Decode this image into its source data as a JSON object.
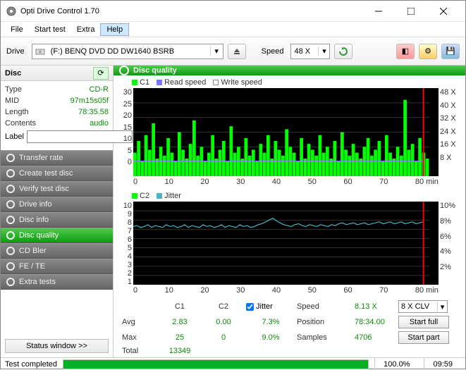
{
  "window": {
    "title": "Opti Drive Control 1.70"
  },
  "menu": {
    "items": [
      "File",
      "Start test",
      "Extra",
      "Help"
    ],
    "active_index": 3
  },
  "toolbar": {
    "drive_label": "Drive",
    "drive_value": "(F:)   BENQ DVD DD DW1640 BSRB",
    "speed_label": "Speed",
    "speed_value": "48 X"
  },
  "disc": {
    "header": "Disc",
    "type_label": "Type",
    "type_value": "CD-R",
    "mid_label": "MID",
    "mid_value": "97m15s05f",
    "length_label": "Length",
    "length_value": "78:35.58",
    "contents_label": "Contents",
    "contents_value": "audio",
    "label_label": "Label",
    "label_value": ""
  },
  "nav": {
    "items": [
      "Transfer rate",
      "Create test disc",
      "Verify test disc",
      "Drive info",
      "Disc info",
      "Disc quality",
      "CD Bler",
      "FE / TE",
      "Extra tests"
    ],
    "active_index": 5,
    "status_window": "Status window >>"
  },
  "quality": {
    "header": "Disc quality"
  },
  "chart1": {
    "legend": [
      {
        "label": "C1",
        "color": "#00ff00"
      },
      {
        "label": "Read speed",
        "color": "#7878ff"
      },
      {
        "label": "Write speed",
        "color": "#ffffff"
      }
    ],
    "y_ticks": [
      "30",
      "25",
      "20",
      "15",
      "10",
      "5",
      "0"
    ],
    "y2_ticks": [
      "48 X",
      "40 X",
      "32 X",
      "24 X",
      "16 X",
      "8 X",
      ""
    ],
    "x_ticks": [
      "0",
      "10",
      "20",
      "30",
      "40",
      "50",
      "60",
      "70",
      "80 min"
    ],
    "height": 125,
    "bg": "#000000",
    "c1_color": "#00ff00",
    "read_color": "#977dff",
    "grid_color": "#333333",
    "marker_color": "#ff0000",
    "xlim": [
      0,
      80
    ],
    "ylim": [
      0,
      30
    ],
    "c1_series": [
      8,
      12,
      5,
      14,
      9,
      18,
      6,
      10,
      7,
      13,
      8,
      5,
      15,
      9,
      6,
      11,
      19,
      7,
      10,
      5,
      8,
      14,
      6,
      9,
      12,
      5,
      17,
      8,
      10,
      6,
      13,
      7,
      9,
      5,
      11,
      8,
      14,
      6,
      12,
      9,
      7,
      16,
      10,
      8,
      5,
      13,
      6,
      11,
      9,
      7,
      14,
      8,
      10,
      6,
      12,
      5,
      15,
      9,
      7,
      11,
      8,
      6,
      10,
      13,
      7,
      9,
      12,
      5,
      14,
      8,
      6,
      10,
      7,
      26,
      9,
      11,
      5,
      13,
      8,
      6
    ],
    "read_speed": 8.1
  },
  "chart2": {
    "legend": [
      {
        "label": "C2",
        "color": "#00ff00"
      },
      {
        "label": "Jitter",
        "color": "#4db3c4"
      }
    ],
    "y_ticks": [
      "10",
      "9",
      "8",
      "7",
      "6",
      "5",
      "4",
      "3",
      "2",
      "1"
    ],
    "y2_ticks": [
      "10%",
      "",
      "8%",
      "",
      "6%",
      "",
      "4%",
      "",
      "2%",
      ""
    ],
    "x_ticks": [
      "0",
      "10",
      "20",
      "30",
      "40",
      "50",
      "60",
      "70",
      "80 min"
    ],
    "height": 118,
    "bg": "#000000",
    "jitter_color": "#4db3c4",
    "grid_color": "#333333",
    "marker_color": "#ff0000",
    "ylim": [
      1,
      10
    ],
    "jitter_series": [
      7.3,
      7.4,
      7.2,
      7.3,
      7.5,
      7.2,
      7.4,
      7.3,
      7.2,
      7.5,
      7.3,
      7.4,
      7.2,
      7.3,
      7.5,
      7.2,
      7.4,
      7.3,
      7.2,
      7.5,
      7.3,
      7.4,
      7.2,
      7.3,
      7.5,
      7.2,
      7.4,
      7.3,
      7.2,
      7.5,
      7.3,
      7.4,
      7.2,
      7.3,
      7.5,
      7.6,
      7.8,
      8.0,
      8.2,
      7.9,
      7.7,
      7.5,
      7.4,
      7.3,
      7.5,
      7.6,
      7.4,
      7.3,
      7.5,
      7.4,
      7.3,
      7.5,
      7.4,
      7.3,
      7.5,
      7.4,
      7.6,
      7.7,
      7.5,
      7.6,
      7.7,
      7.5,
      7.6,
      7.7,
      7.5,
      7.6,
      7.7,
      7.8,
      7.6,
      7.7,
      7.8,
      7.6,
      7.7,
      7.8,
      7.6,
      7.7,
      7.8,
      7.6,
      7.7,
      7.8
    ]
  },
  "stats": {
    "c1_hdr": "C1",
    "c2_hdr": "C2",
    "jitter_label": "Jitter",
    "speed_label": "Speed",
    "speed_value": "8.13 X",
    "combo_value": "8 X CLV",
    "avg_label": "Avg",
    "avg_c1": "2.83",
    "avg_c2": "0.00",
    "avg_jitter": "7.3%",
    "pos_label": "Position",
    "pos_value": "78:34.00",
    "startfull": "Start full",
    "max_label": "Max",
    "max_c1": "25",
    "max_c2": "0",
    "max_jitter": "9.0%",
    "samples_label": "Samples",
    "samples_value": "4706",
    "startpart": "Start part",
    "total_label": "Total",
    "total_c1": "13349"
  },
  "status": {
    "text": "Test completed",
    "progress": "100.0%",
    "time": "09:59"
  },
  "colors": {
    "green": "#0a8a0a",
    "dark": "#333333"
  }
}
